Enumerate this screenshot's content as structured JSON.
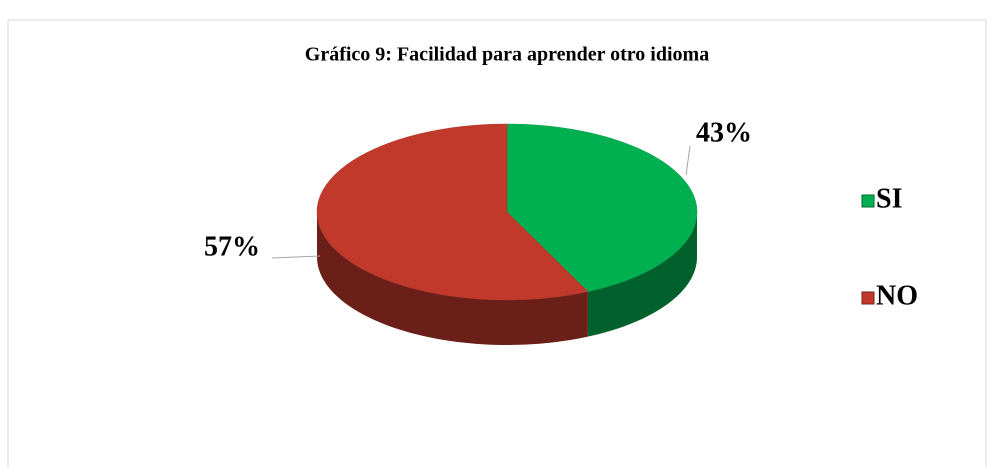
{
  "chart_data": {
    "type": "pie",
    "title": "Gráfico 9: Facilidad para aprender otro idioma",
    "categories": [
      "SI",
      "NO"
    ],
    "values": [
      43,
      57
    ],
    "value_labels": [
      "43%",
      "57%"
    ],
    "colors": [
      "#00b050",
      "#c0392b"
    ],
    "legend": "right"
  }
}
